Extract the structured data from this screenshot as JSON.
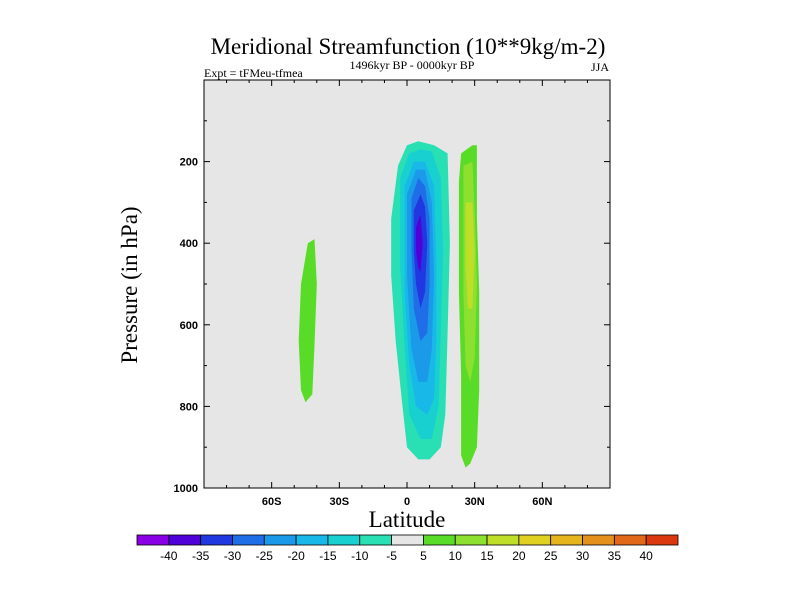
{
  "chart_data": {
    "type": "heatmap",
    "title": "Meridional Streamfunction (10**9kg/m-2)",
    "subtitle_left": "Expt = tFMeu-tfmea",
    "subtitle_center": "1496kyr BP - 0000kyr BP",
    "subtitle_right": "JJA",
    "xlabel": "Latitude",
    "ylabel": "Pressure (in hPa)",
    "xlim": [
      -90,
      90
    ],
    "ylim": [
      1000,
      0
    ],
    "x_ticks": [
      {
        "value": -60,
        "label": "60S"
      },
      {
        "value": -30,
        "label": "30S"
      },
      {
        "value": 0,
        "label": "0"
      },
      {
        "value": 30,
        "label": "30N"
      },
      {
        "value": 60,
        "label": "60N"
      }
    ],
    "y_ticks": [
      {
        "value": 200,
        "label": "200"
      },
      {
        "value": 400,
        "label": "400"
      },
      {
        "value": 600,
        "label": "600"
      },
      {
        "value": 800,
        "label": "800"
      },
      {
        "value": 1000,
        "label": "1000"
      }
    ],
    "contour_levels": [
      -40,
      -35,
      -30,
      -25,
      -20,
      -15,
      -10,
      -5,
      5,
      10,
      15,
      20,
      25,
      30,
      35,
      40
    ],
    "colorbar_labels": [
      "-40",
      "-35",
      "-30",
      "-25",
      "-20",
      "-15",
      "-10",
      "-5",
      "5",
      "10",
      "15",
      "20",
      "25",
      "30",
      "35",
      "40"
    ],
    "colorbar_colors": [
      "#8a00e6",
      "#5000d8",
      "#2038e0",
      "#1f6ee8",
      "#1a9ae8",
      "#18b8e8",
      "#18d0d0",
      "#28e0b4",
      "#e6e6e6",
      "#58dc28",
      "#8ee030",
      "#bede28",
      "#e0d020",
      "#e6b41c",
      "#e4901c",
      "#e06818",
      "#dc3810"
    ],
    "background_color": "#e6e6e6",
    "regions": [
      {
        "name": "nh-polar-strip",
        "level": -5,
        "points": [
          [
            -78,
            0
          ],
          [
            -71,
            0
          ],
          [
            -71,
            200
          ],
          [
            -72,
            300
          ],
          [
            -73,
            380
          ],
          [
            -75,
            340
          ],
          [
            -76,
            260
          ],
          [
            -77,
            120
          ]
        ]
      },
      {
        "name": "nh-jet-strip",
        "level": -5,
        "points": [
          [
            13,
            0
          ],
          [
            15,
            0
          ],
          [
            15,
            110
          ],
          [
            13,
            120
          ]
        ]
      },
      {
        "name": "sh-mid-lobe",
        "level": 10,
        "points": [
          [
            -44,
            400
          ],
          [
            -41,
            390
          ],
          [
            -40,
            500
          ],
          [
            -41,
            650
          ],
          [
            -42,
            770
          ],
          [
            -45,
            790
          ],
          [
            -47,
            760
          ],
          [
            -48,
            640
          ],
          [
            -47,
            500
          ]
        ]
      },
      {
        "name": "nh-positive-band",
        "level": 10,
        "points": [
          [
            24,
            180
          ],
          [
            29,
            160
          ],
          [
            31,
            160
          ],
          [
            31,
            340
          ],
          [
            32,
            520
          ],
          [
            32,
            760
          ],
          [
            31,
            900
          ],
          [
            28,
            940
          ],
          [
            26,
            950
          ],
          [
            24,
            920
          ],
          [
            24,
            720
          ],
          [
            23,
            520
          ],
          [
            23,
            350
          ],
          [
            23,
            250
          ]
        ]
      },
      {
        "name": "nh-positive-core",
        "level": 15,
        "points": [
          [
            25,
            210
          ],
          [
            29,
            200
          ],
          [
            30,
            320
          ],
          [
            31,
            500
          ],
          [
            30,
            680
          ],
          [
            28,
            740
          ],
          [
            26,
            700
          ],
          [
            25,
            520
          ],
          [
            25,
            360
          ]
        ]
      },
      {
        "name": "nh-positive-peak",
        "level": 20,
        "points": [
          [
            26,
            300
          ],
          [
            29,
            300
          ],
          [
            30,
            420
          ],
          [
            29,
            560
          ],
          [
            27,
            560
          ],
          [
            26,
            460
          ]
        ]
      },
      {
        "name": "sh-strip-a",
        "level": -5,
        "points": [
          [
            -29,
            70
          ],
          [
            -26,
            70
          ],
          [
            -25,
            180
          ],
          [
            -24,
            240
          ],
          [
            -25,
            420
          ],
          [
            -25,
            600
          ],
          [
            -24,
            840
          ],
          [
            -26,
            910
          ],
          [
            -30,
            920
          ],
          [
            -32,
            830
          ],
          [
            -33,
            600
          ],
          [
            -32,
            400
          ],
          [
            -31,
            230
          ],
          [
            -31,
            150
          ]
        ]
      },
      {
        "name": "tropical-envelope",
        "level": -5,
        "points": [
          [
            -14,
            175
          ],
          [
            -11,
            230
          ],
          [
            -8,
            260
          ],
          [
            -4,
            180
          ],
          [
            -2,
            140
          ],
          [
            4,
            120
          ],
          [
            12,
            130
          ],
          [
            20,
            140
          ],
          [
            22,
            340
          ],
          [
            22,
            560
          ],
          [
            20,
            800
          ],
          [
            17,
            930
          ],
          [
            12,
            960
          ],
          [
            9,
            980
          ],
          [
            5,
            980
          ],
          [
            2,
            940
          ],
          [
            -2,
            900
          ],
          [
            -7,
            860
          ],
          [
            -10,
            700
          ],
          [
            -12,
            520
          ],
          [
            -14,
            420
          ],
          [
            -16,
            380
          ],
          [
            -17,
            310
          ],
          [
            -19,
            220
          ],
          [
            -17,
            160
          ]
        ]
      },
      {
        "name": "tropical-neg-10",
        "level": -10,
        "points": [
          [
            -7,
            340
          ],
          [
            -4,
            210
          ],
          [
            0,
            160
          ],
          [
            5,
            150
          ],
          [
            12,
            160
          ],
          [
            18,
            180
          ],
          [
            19,
            400
          ],
          [
            18,
            620
          ],
          [
            17,
            820
          ],
          [
            15,
            900
          ],
          [
            10,
            930
          ],
          [
            5,
            930
          ],
          [
            0,
            900
          ],
          [
            -2,
            800
          ],
          [
            -5,
            640
          ],
          [
            -7,
            480
          ]
        ]
      },
      {
        "name": "tropical-neg-15",
        "level": -15,
        "points": [
          [
            -3,
            240
          ],
          [
            1,
            180
          ],
          [
            6,
            170
          ],
          [
            11,
            175
          ],
          [
            15,
            240
          ],
          [
            16,
            420
          ],
          [
            15,
            620
          ],
          [
            14,
            800
          ],
          [
            11,
            880
          ],
          [
            6,
            880
          ],
          [
            1,
            820
          ],
          [
            -1,
            660
          ],
          [
            -3,
            460
          ]
        ]
      },
      {
        "name": "tropical-neg-20",
        "level": -20,
        "points": [
          [
            -1,
            260
          ],
          [
            3,
            200
          ],
          [
            8,
            200
          ],
          [
            12,
            260
          ],
          [
            13,
            440
          ],
          [
            13,
            640
          ],
          [
            12,
            780
          ],
          [
            9,
            820
          ],
          [
            4,
            800
          ],
          [
            1,
            700
          ],
          [
            -1,
            520
          ]
        ]
      },
      {
        "name": "tropical-neg-25",
        "level": -25,
        "points": [
          [
            0,
            280
          ],
          [
            4,
            220
          ],
          [
            8,
            220
          ],
          [
            11,
            300
          ],
          [
            12,
            480
          ],
          [
            11,
            660
          ],
          [
            9,
            740
          ],
          [
            5,
            740
          ],
          [
            2,
            660
          ],
          [
            0,
            480
          ]
        ]
      },
      {
        "name": "tropical-neg-30",
        "level": -30,
        "points": [
          [
            2,
            290
          ],
          [
            5,
            240
          ],
          [
            8,
            260
          ],
          [
            10,
            340
          ],
          [
            10,
            500
          ],
          [
            9,
            620
          ],
          [
            6,
            640
          ],
          [
            3,
            560
          ],
          [
            2,
            420
          ]
        ]
      },
      {
        "name": "tropical-neg-35",
        "level": -35,
        "points": [
          [
            3,
            320
          ],
          [
            6,
            280
          ],
          [
            8,
            310
          ],
          [
            9,
            400
          ],
          [
            8,
            520
          ],
          [
            6,
            560
          ],
          [
            4,
            500
          ],
          [
            3,
            420
          ]
        ]
      },
      {
        "name": "tropical-neg-40",
        "level": -40,
        "points": [
          [
            4,
            360
          ],
          [
            6,
            330
          ],
          [
            7,
            400
          ],
          [
            6,
            470
          ],
          [
            5,
            460
          ],
          [
            4,
            420
          ]
        ]
      }
    ]
  }
}
